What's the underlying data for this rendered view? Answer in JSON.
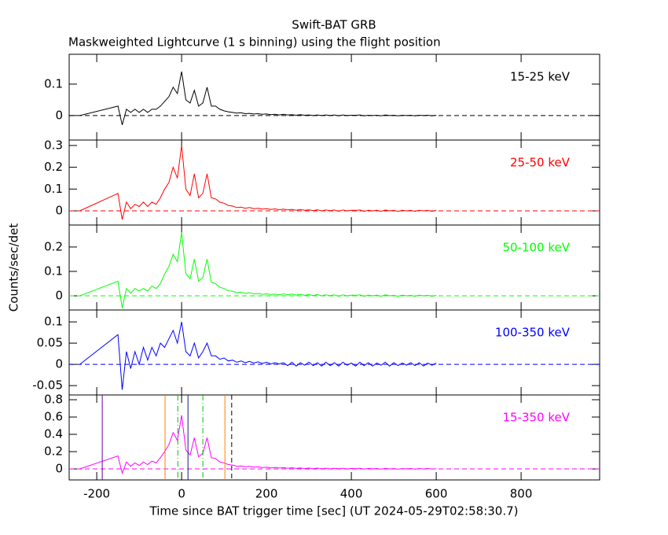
{
  "title": "Swift-BAT GRB",
  "subtitle": "Maskweighted Lightcurve (1 s binning) using the flight position",
  "y_label": "Counts/sec/det",
  "x_label": "Time since BAT trigger time [sec] (UT 2024-05-29T02:58:30.7)",
  "chart_data": [
    {
      "type": "line",
      "label": "15-25 keV",
      "color": "#000000",
      "show_x_tick_labels": false,
      "reference_line": 0,
      "xlim": [
        -265,
        985
      ],
      "xticks": [
        -200,
        0,
        200,
        400,
        600,
        800
      ],
      "ylim": [
        -0.078,
        0.195
      ],
      "yticks": [
        0,
        0.1
      ],
      "x": [
        -240,
        -150,
        -140,
        -130,
        -120,
        -110,
        -100,
        -90,
        -80,
        -70,
        -60,
        -50,
        -40,
        -30,
        -20,
        -10,
        0,
        10,
        20,
        30,
        40,
        50,
        60,
        70,
        80,
        90,
        100,
        110,
        120,
        130,
        140,
        150,
        160,
        170,
        180,
        190,
        200,
        210,
        220,
        230,
        240,
        250,
        260,
        270,
        280,
        290,
        300,
        310,
        320,
        330,
        340,
        350,
        360,
        370,
        380,
        390,
        400,
        410,
        420,
        430,
        440,
        450,
        460,
        470,
        480,
        490,
        500,
        510,
        520,
        530,
        540,
        550,
        560,
        570,
        580,
        590,
        600
      ],
      "values": [
        0,
        0.03,
        -0.03,
        0.02,
        0.01,
        0.02,
        0.01,
        0.02,
        0.01,
        0.02,
        0.02,
        0.03,
        0.045,
        0.06,
        0.09,
        0.07,
        0.14,
        0.05,
        0.04,
        0.08,
        0.03,
        0.04,
        0.09,
        0.03,
        0.03,
        0.02,
        0.015,
        0.012,
        0.01,
        0.008,
        0.009,
        0.006,
        0.007,
        0.005,
        0.006,
        0.004,
        0.005,
        0.003,
        0.004,
        0.002,
        0.004,
        0.002,
        0.003,
        0.001,
        0.003,
        0.001,
        0.002,
        0,
        0.002,
        0,
        0.002,
        0,
        0.002,
        -0.001,
        0.002,
        0,
        0.001,
        0.001,
        0.002,
        -0.001,
        0.001,
        0,
        0.001,
        -0.001,
        0.002,
        0,
        0.001,
        -0.001,
        0.001,
        0,
        0.001,
        -0.001,
        0.001,
        0,
        0.001,
        -0.001,
        0.001
      ]
    },
    {
      "type": "line",
      "label": "25-50 keV",
      "color": "#ff0000",
      "show_x_tick_labels": false,
      "reference_line": 0,
      "xlim": [
        -265,
        985
      ],
      "xticks": [
        -200,
        0,
        200,
        400,
        600,
        800
      ],
      "ylim": [
        -0.065,
        0.325
      ],
      "yticks": [
        0,
        0.1,
        0.2,
        0.3
      ],
      "x": [
        -240,
        -150,
        -140,
        -130,
        -120,
        -110,
        -100,
        -90,
        -80,
        -70,
        -60,
        -50,
        -40,
        -30,
        -20,
        -10,
        0,
        10,
        20,
        30,
        40,
        50,
        60,
        70,
        80,
        90,
        100,
        110,
        120,
        130,
        140,
        150,
        160,
        170,
        180,
        190,
        200,
        210,
        220,
        230,
        240,
        250,
        260,
        270,
        280,
        290,
        300,
        310,
        320,
        330,
        340,
        350,
        360,
        370,
        380,
        390,
        400,
        410,
        420,
        430,
        440,
        450,
        460,
        470,
        480,
        490,
        500,
        510,
        520,
        530,
        540,
        550,
        560,
        570,
        580,
        590,
        600
      ],
      "values": [
        0,
        0.08,
        -0.04,
        0.04,
        0.01,
        0.03,
        0.02,
        0.04,
        0.02,
        0.04,
        0.03,
        0.06,
        0.1,
        0.13,
        0.2,
        0.15,
        0.3,
        0.1,
        0.07,
        0.17,
        0.06,
        0.08,
        0.17,
        0.06,
        0.055,
        0.04,
        0.035,
        0.025,
        0.022,
        0.015,
        0.017,
        0.012,
        0.015,
        0.01,
        0.012,
        0.008,
        0.01,
        0.006,
        0.009,
        0.005,
        0.008,
        0.004,
        0.007,
        0.003,
        0.006,
        0.002,
        0.005,
        0.001,
        0.005,
        0,
        0.004,
        0.001,
        0.004,
        -0.002,
        0.004,
        0,
        0.003,
        0.002,
        0.004,
        -0.002,
        0.003,
        0,
        0.003,
        -0.002,
        0.004,
        0,
        0.002,
        -0.002,
        0.003,
        0,
        0.002,
        -0.002,
        0.003,
        0,
        0.002,
        -0.002,
        0.002
      ]
    },
    {
      "type": "line",
      "label": "50-100 keV",
      "color": "#00ff00",
      "show_x_tick_labels": false,
      "reference_line": 0,
      "xlim": [
        -265,
        985
      ],
      "xticks": [
        -200,
        0,
        200,
        400,
        600,
        800
      ],
      "ylim": [
        -0.058,
        0.29
      ],
      "yticks": [
        0,
        0.1,
        0.2
      ],
      "x": [
        -240,
        -150,
        -140,
        -130,
        -120,
        -110,
        -100,
        -90,
        -80,
        -70,
        -60,
        -50,
        -40,
        -30,
        -20,
        -10,
        0,
        10,
        20,
        30,
        40,
        50,
        60,
        70,
        80,
        90,
        100,
        110,
        120,
        130,
        140,
        150,
        160,
        170,
        180,
        190,
        200,
        210,
        220,
        230,
        240,
        250,
        260,
        270,
        280,
        290,
        300,
        310,
        320,
        330,
        340,
        350,
        360,
        370,
        380,
        390,
        400,
        410,
        420,
        430,
        440,
        450,
        460,
        470,
        480,
        490,
        500,
        510,
        520,
        530,
        540,
        550,
        560,
        570,
        580,
        590,
        600
      ],
      "values": [
        0,
        0.06,
        -0.05,
        0.03,
        0.01,
        0.03,
        0.02,
        0.03,
        0.02,
        0.04,
        0.03,
        0.05,
        0.09,
        0.12,
        0.17,
        0.14,
        0.26,
        0.09,
        0.07,
        0.15,
        0.06,
        0.075,
        0.15,
        0.055,
        0.05,
        0.035,
        0.03,
        0.02,
        0.019,
        0.013,
        0.015,
        0.01,
        0.013,
        0.008,
        0.01,
        0.006,
        0.008,
        0.005,
        0.007,
        0.004,
        0.008,
        0.004,
        0.007,
        0.003,
        0.006,
        0.002,
        0.005,
        0.001,
        0.005,
        0,
        0.004,
        0.001,
        0.004,
        -0.002,
        0.004,
        0,
        0.003,
        0.002,
        0.004,
        -0.002,
        0.003,
        0,
        0.003,
        -0.002,
        0.004,
        0,
        0.002,
        -0.002,
        0.003,
        0,
        0.002,
        -0.002,
        0.003,
        0,
        0.002,
        -0.002,
        0.002
      ]
    },
    {
      "type": "line",
      "label": "100-350 keV",
      "color": "#0000ff",
      "show_x_tick_labels": false,
      "reference_line": 0,
      "xlim": [
        -265,
        985
      ],
      "xticks": [
        -200,
        0,
        200,
        400,
        600,
        800
      ],
      "ylim": [
        -0.072,
        0.128
      ],
      "yticks": [
        -0.05,
        0,
        0.05,
        0.1
      ],
      "x": [
        -240,
        -150,
        -140,
        -130,
        -120,
        -110,
        -100,
        -90,
        -80,
        -70,
        -60,
        -50,
        -40,
        -30,
        -20,
        -10,
        0,
        10,
        20,
        30,
        40,
        50,
        60,
        70,
        80,
        90,
        100,
        110,
        120,
        130,
        140,
        150,
        160,
        170,
        180,
        190,
        200,
        210,
        220,
        230,
        240,
        250,
        260,
        270,
        280,
        290,
        300,
        310,
        320,
        330,
        340,
        350,
        360,
        370,
        380,
        390,
        400,
        410,
        420,
        430,
        440,
        450,
        460,
        470,
        480,
        490,
        500,
        510,
        520,
        530,
        540,
        550,
        560,
        570,
        580,
        590,
        600
      ],
      "values": [
        0,
        0.07,
        -0.06,
        0.03,
        -0.01,
        0.03,
        0,
        0.04,
        0.01,
        0.04,
        0.02,
        0.05,
        0.04,
        0.06,
        0.08,
        0.05,
        0.1,
        0.03,
        0.02,
        0.05,
        0.015,
        0.03,
        0.05,
        0.02,
        0.02,
        0.012,
        0.015,
        0.008,
        0.01,
        0.005,
        0.008,
        0.004,
        0.007,
        0.003,
        0.006,
        0.002,
        0.005,
        0.001,
        0.004,
        0.001,
        0.004,
        -0.003,
        0.005,
        -0.004,
        0.004,
        -0.002,
        0.005,
        -0.003,
        0.004,
        -0.004,
        0.005,
        -0.003,
        0.004,
        -0.004,
        0.005,
        -0.002,
        0.003,
        -0.004,
        0.005,
        -0.003,
        0.004,
        -0.004,
        0.003,
        -0.002,
        0.005,
        -0.004,
        0.004,
        -0.003,
        0.003,
        -0.002,
        0.004,
        -0.003,
        0.004,
        -0.004,
        0.003,
        -0.002,
        0.003
      ]
    },
    {
      "type": "line",
      "label": "15-350 keV",
      "color": "#ff00ff",
      "show_x_tick_labels": true,
      "reference_line": 0,
      "xlim": [
        -265,
        985
      ],
      "xticks": [
        -200,
        0,
        200,
        400,
        600,
        800
      ],
      "ylim": [
        -0.127,
        0.855
      ],
      "yticks": [
        0,
        0.2,
        0.4,
        0.6,
        0.8
      ],
      "x": [
        -240,
        -150,
        -140,
        -130,
        -120,
        -110,
        -100,
        -90,
        -80,
        -70,
        -60,
        -50,
        -40,
        -30,
        -20,
        -10,
        0,
        10,
        20,
        30,
        40,
        50,
        60,
        70,
        80,
        90,
        100,
        110,
        120,
        130,
        140,
        150,
        160,
        170,
        180,
        190,
        200,
        210,
        220,
        230,
        240,
        250,
        260,
        270,
        280,
        290,
        300,
        310,
        320,
        330,
        340,
        350,
        360,
        370,
        380,
        390,
        400,
        410,
        420,
        430,
        440,
        450,
        460,
        470,
        480,
        490,
        500,
        510,
        520,
        530,
        540,
        550,
        560,
        570,
        580,
        590,
        600
      ],
      "values": [
        0,
        0.15,
        -0.05,
        0.08,
        0.03,
        0.07,
        0.04,
        0.08,
        0.05,
        0.09,
        0.07,
        0.13,
        0.2,
        0.28,
        0.42,
        0.33,
        0.62,
        0.22,
        0.16,
        0.36,
        0.14,
        0.18,
        0.36,
        0.13,
        0.12,
        0.08,
        0.07,
        0.05,
        0.045,
        0.03,
        0.035,
        0.025,
        0.03,
        0.02,
        0.025,
        0.015,
        0.02,
        0.012,
        0.018,
        0.01,
        0.015,
        0.008,
        0.014,
        0.006,
        0.012,
        0.004,
        0.01,
        0.003,
        0.009,
        0.002,
        0.008,
        0.001,
        0.007,
        0.002,
        0.008,
        0,
        0.006,
        0.003,
        0.007,
        -0.002,
        0.006,
        0.001,
        0.005,
        -0.002,
        0.006,
        0,
        0.005,
        -0.003,
        0.004,
        0.001,
        0.005,
        -0.002,
        0.004,
        0,
        0.005,
        -0.001,
        0.003
      ],
      "vlines": [
        {
          "x": -187,
          "color": "#6000b0",
          "style": "solid"
        },
        {
          "x": -39,
          "color": "#ff8000",
          "style": "solid"
        },
        {
          "x": -9,
          "color": "#00c000",
          "style": "dashdot"
        },
        {
          "x": 15,
          "color": "#1a1a8c",
          "style": "solid"
        },
        {
          "x": 50,
          "color": "#00c000",
          "style": "dashdot"
        },
        {
          "x": 102,
          "color": "#ff8000",
          "style": "solid"
        },
        {
          "x": 118,
          "color": "#000000",
          "style": "dashed"
        }
      ]
    }
  ]
}
